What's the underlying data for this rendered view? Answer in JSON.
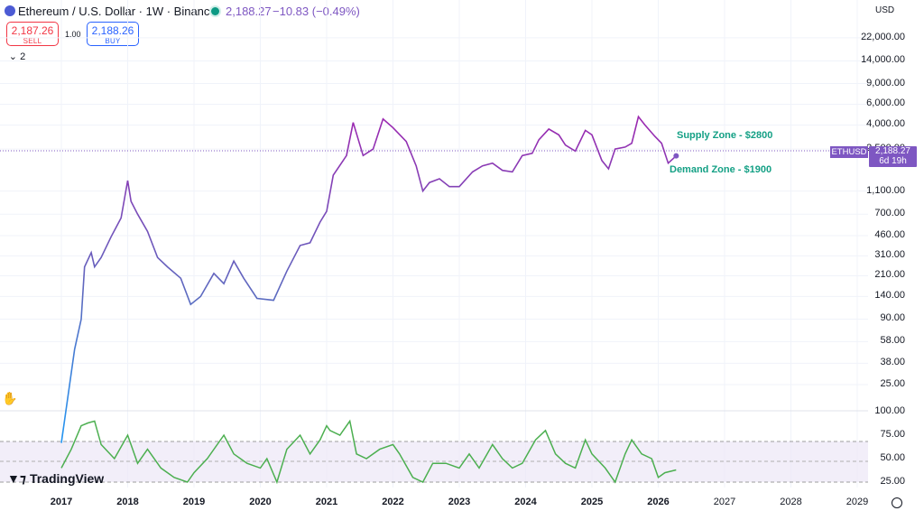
{
  "header": {
    "title": "Ethereum / U.S. Dollar · 1W · Binance",
    "last": "2,188.27",
    "change": "−10.83 (−0.49%)",
    "icon": "eth-icon",
    "status_icon": "market-status-dot-icon"
  },
  "trade": {
    "sell_price": "2,187.26",
    "sell_label": "SELL",
    "spread": "1.00",
    "buy_price": "2,188.26",
    "buy_label": "BUY"
  },
  "indicators": {
    "toggle": "2",
    "icon": "chevron-down-icon"
  },
  "axis": {
    "currency": "USD",
    "price_ticks": [
      "22,000.00",
      "14,000.00",
      "9,000.00",
      "6,000.00",
      "4,000.00",
      "2,500.00",
      "1,100.00",
      "700.00",
      "460.00",
      "310.00",
      "210.00",
      "140.00",
      "90.00",
      "58.00",
      "38.00",
      "25.00"
    ],
    "rsi_ticks": [
      "100.00",
      "75.00",
      "50.00",
      "25.00"
    ],
    "years": [
      "2017",
      "2018",
      "2019",
      "2020",
      "2021",
      "2022",
      "2023",
      "2024",
      "2025",
      "2026",
      "2027",
      "2028",
      "2029"
    ]
  },
  "symbol_label": "ETHUSD",
  "price_badge": {
    "price": "2,188.27",
    "countdown": "6d 19h"
  },
  "annotations": {
    "supply": "Supply Zone - $2800",
    "demand": "Demand Zone - $1900"
  },
  "branding": {
    "logo": "TradingView"
  },
  "colors": {
    "accent": "#7e57c2",
    "rsi": "#4caf50",
    "supply_demand": "#14a085",
    "sell": "#f23645",
    "buy": "#2962ff"
  },
  "chart_data": {
    "type": "line",
    "series": [
      {
        "x": [
          2017.0,
          2017.2,
          2017.3,
          2017.35,
          2017.45,
          2017.5,
          2017.6,
          2017.75,
          2017.9,
          2018.0,
          2018.05,
          2018.15,
          2018.3,
          2018.45,
          2018.6,
          2018.8,
          2018.95,
          2019.1,
          2019.3,
          2019.45,
          2019.6,
          2019.75,
          2019.95,
          2020.2,
          2020.4,
          2020.6,
          2020.75,
          2020.9,
          2021.0,
          2021.1,
          2021.3,
          2021.4,
          2021.55,
          2021.7,
          2021.85,
          2022.0,
          2022.2,
          2022.35,
          2022.45,
          2022.55,
          2022.7,
          2022.85,
          2023.0,
          2023.2,
          2023.35,
          2023.5,
          2023.65,
          2023.8,
          2023.95,
          2024.1,
          2024.2,
          2024.35,
          2024.5,
          2024.6,
          2024.75,
          2024.9,
          2025.0,
          2025.15,
          2025.25,
          2025.35,
          2025.5,
          2025.6,
          2025.7,
          2025.8,
          2025.95,
          2026.05,
          2026.15,
          2026.27
        ],
        "y": [
          8,
          50,
          90,
          250,
          330,
          250,
          300,
          450,
          650,
          1350,
          900,
          700,
          500,
          300,
          250,
          200,
          120,
          140,
          220,
          180,
          280,
          200,
          135,
          130,
          230,
          380,
          400,
          600,
          740,
          1500,
          2200,
          4200,
          2200,
          2500,
          4500,
          3800,
          2900,
          1800,
          1100,
          1300,
          1400,
          1200,
          1200,
          1600,
          1800,
          1900,
          1650,
          1600,
          2200,
          2300,
          3000,
          3700,
          3300,
          2700,
          2400,
          3600,
          3300,
          2000,
          1700,
          2500,
          2600,
          2800,
          4700,
          4000,
          3200,
          2800,
          1900,
          2188
        ],
        "ylim": [
          15,
          40000
        ]
      },
      {
        "x": [
          2017.0,
          2017.15,
          2017.3,
          2017.4,
          2017.5,
          2017.6,
          2017.8,
          2018.0,
          2018.15,
          2018.3,
          2018.5,
          2018.7,
          2018.9,
          2019.0,
          2019.2,
          2019.45,
          2019.6,
          2019.8,
          2020.0,
          2020.1,
          2020.25,
          2020.4,
          2020.6,
          2020.75,
          2020.9,
          2021.0,
          2021.05,
          2021.2,
          2021.35,
          2021.45,
          2021.6,
          2021.8,
          2022.0,
          2022.1,
          2022.3,
          2022.45,
          2022.6,
          2022.8,
          2023.0,
          2023.15,
          2023.3,
          2023.5,
          2023.65,
          2023.8,
          2023.95,
          2024.15,
          2024.3,
          2024.45,
          2024.6,
          2024.75,
          2024.9,
          2025.0,
          2025.2,
          2025.35,
          2025.5,
          2025.6,
          2025.75,
          2025.9,
          2026.0,
          2026.1,
          2026.27
        ],
        "y": [
          40,
          60,
          85,
          88,
          90,
          65,
          50,
          75,
          45,
          60,
          40,
          30,
          25,
          35,
          50,
          75,
          55,
          45,
          40,
          50,
          25,
          60,
          75,
          55,
          70,
          85,
          80,
          75,
          90,
          55,
          50,
          60,
          65,
          55,
          30,
          25,
          45,
          45,
          40,
          55,
          40,
          65,
          50,
          40,
          45,
          70,
          80,
          55,
          45,
          40,
          70,
          55,
          40,
          25,
          55,
          70,
          55,
          50,
          30,
          35,
          38
        ],
        "ylim": [
          25,
          100
        ]
      }
    ],
    "xlim": [
      2016.8,
      2029.3
    ]
  }
}
